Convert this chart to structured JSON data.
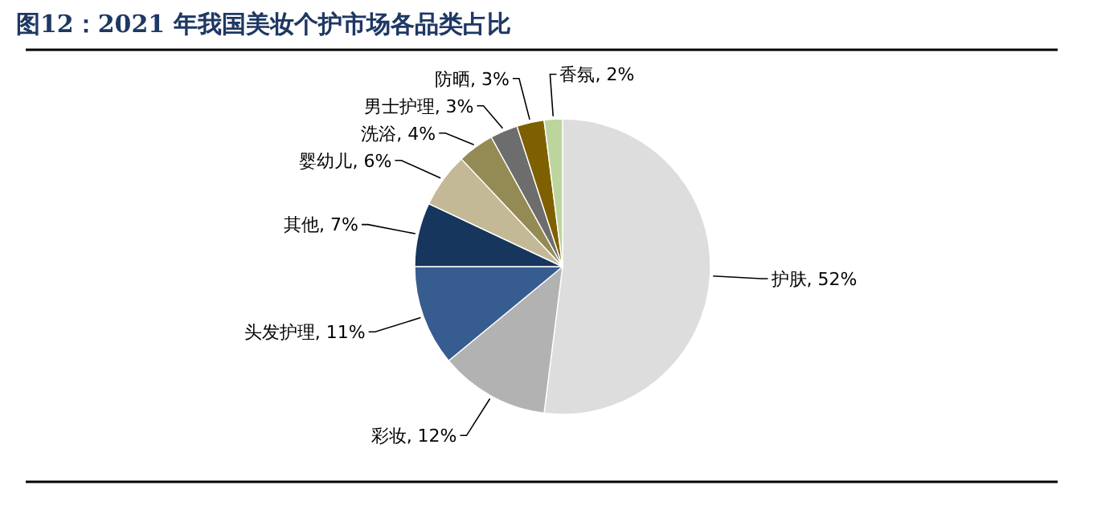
{
  "chart_data": {
    "type": "pie",
    "title": "图12：2021 年我国美妆个护市场各品类占比",
    "categories": [
      "护肤",
      "彩妆",
      "头发护理",
      "其他",
      "婴幼儿",
      "洗浴",
      "男士护理",
      "防晒",
      "香氛"
    ],
    "values": [
      52,
      12,
      11,
      7,
      6,
      4,
      3,
      3,
      2
    ],
    "value_labels": [
      "52%",
      "12%",
      "11%",
      "7%",
      "6%",
      "4%",
      "3%",
      "3%",
      "2%"
    ],
    "colors": [
      "#dddddd",
      "#b2b2b2",
      "#375d90",
      "#17365d",
      "#c4b996",
      "#948a54",
      "#6d6d6d",
      "#7f6000",
      "#bcd59c"
    ],
    "legend": false
  }
}
